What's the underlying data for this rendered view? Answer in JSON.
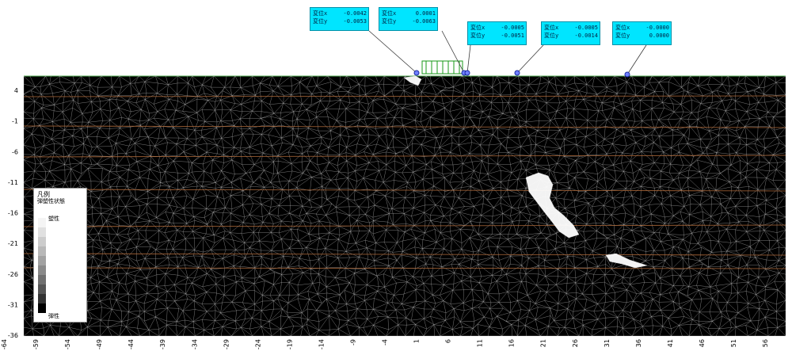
{
  "y_axis": {
    "ticks": [
      "4",
      "-1",
      "-6",
      "-11",
      "-16",
      "-21",
      "-26",
      "-31",
      "-36"
    ]
  },
  "x_axis": {
    "ticks": [
      "-64",
      "-59",
      "-54",
      "-49",
      "-44",
      "-39",
      "-34",
      "-29",
      "-24",
      "-19",
      "-14",
      "-9",
      "-4",
      "1",
      "6",
      "11",
      "16",
      "21",
      "26",
      "31",
      "36",
      "41",
      "46",
      "51",
      "56"
    ]
  },
  "callouts": [
    {
      "label_x": "変位x",
      "value_x": "-0.0042",
      "label_y": "変位y",
      "value_y": "-0.0053"
    },
    {
      "label_x": "変位x",
      "value_x": "0.0001",
      "label_y": "変位y",
      "value_y": "-0.0063"
    },
    {
      "label_x": "変位x",
      "value_x": "-0.0005",
      "label_y": "変位y",
      "value_y": "-0.0051"
    },
    {
      "label_x": "変位x",
      "value_x": "-0.0005",
      "label_y": "変位y",
      "value_y": "-0.0014"
    },
    {
      "label_x": "変位x",
      "value_x": "-0.0000",
      "label_y": "変位y",
      "value_y": "0.0000"
    }
  ],
  "legend": {
    "title": "凡例",
    "subtitle": "弾塑性状態",
    "top_label": "塑性",
    "bottom_label": "弾性"
  },
  "colors": {
    "background": "#000000",
    "mesh": "#cfcfcf",
    "layer_lines": "#b06a3a",
    "callout_fill": "#00e5ff",
    "load": "#1a9a1a",
    "plastic_zone": "#ffffff"
  }
}
